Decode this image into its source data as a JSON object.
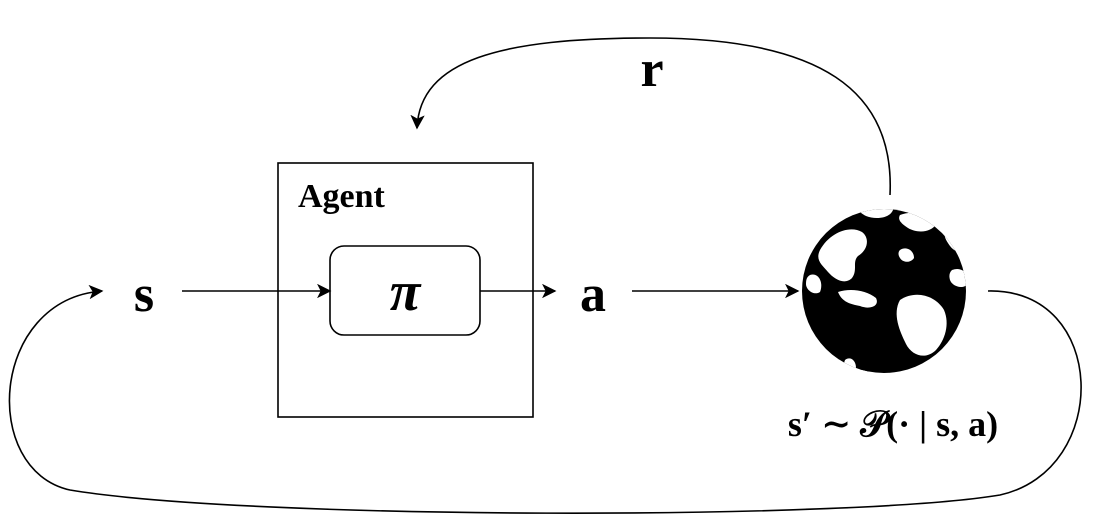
{
  "agent": {
    "title": "Agent",
    "policy_symbol": "π"
  },
  "signals": {
    "state": "s",
    "action": "a",
    "reward": "r"
  },
  "environment": {
    "icon": "globe-icon",
    "transition_label": "s′ ∼ 𝒫(· | s, a)"
  },
  "colors": {
    "ink": "#000000",
    "background": "#ffffff"
  }
}
